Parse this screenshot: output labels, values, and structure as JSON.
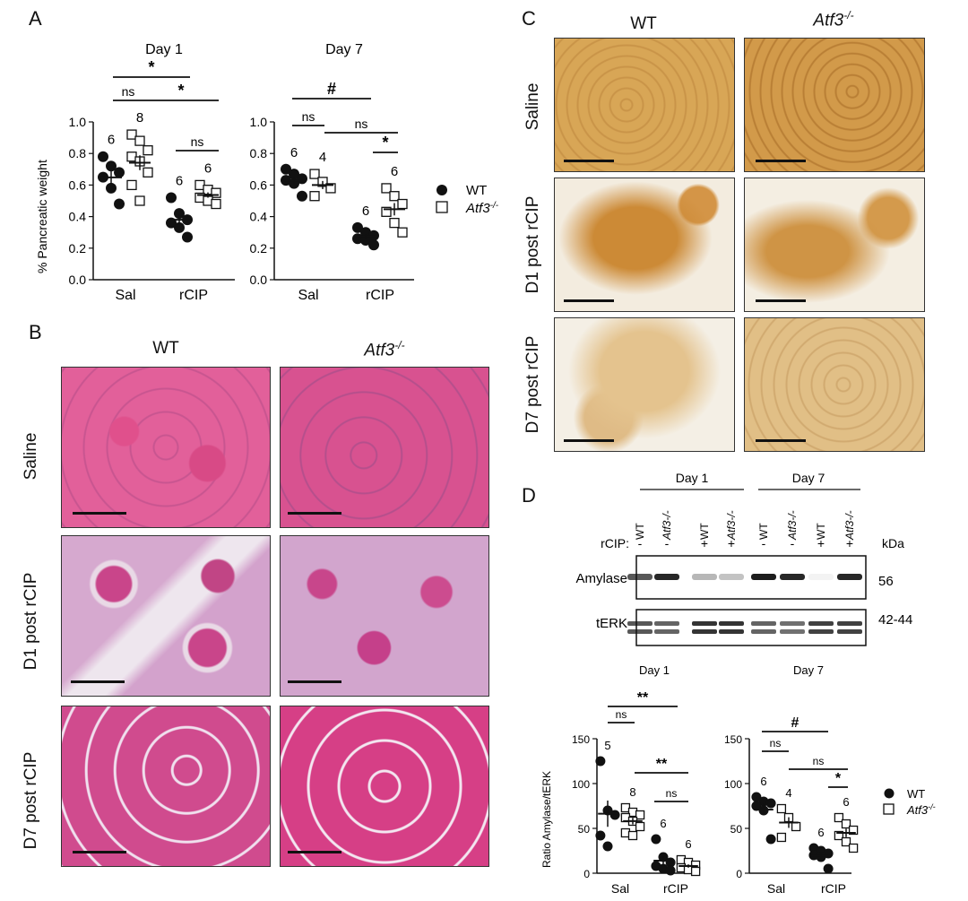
{
  "panels": {
    "a": "A",
    "b": "B",
    "c": "C",
    "d": "D"
  },
  "panelA": {
    "ylabel": "% Pancreatic weight",
    "legend": {
      "wt": "WT",
      "ko": "Atf3",
      "ko_sup": "-/-"
    },
    "charts": [
      {
        "title": "Day 1",
        "categories": [
          "Sal",
          "rCIP"
        ],
        "yticks": [
          "0.0",
          "0.2",
          "0.4",
          "0.6",
          "0.8",
          "1.0"
        ],
        "n": {
          "sal_wt": "6",
          "sal_ko": "8",
          "rcip_wt": "6",
          "rcip_ko": "6"
        },
        "sig": [
          "*",
          "ns",
          "*",
          "ns"
        ]
      },
      {
        "title": "Day 7",
        "categories": [
          "Sal",
          "rCIP"
        ],
        "yticks": [
          "0.0",
          "0.2",
          "0.4",
          "0.6",
          "0.8",
          "1.0"
        ],
        "n": {
          "sal_wt": "6",
          "sal_ko": "4",
          "rcip_wt": "6",
          "rcip_ko": "6"
        },
        "sig": [
          "#",
          "ns",
          "ns",
          "*"
        ]
      }
    ]
  },
  "panelB": {
    "cols": [
      "WT",
      "Atf3"
    ],
    "col_sup": "-/-",
    "rows": [
      "Saline",
      "D1 post rCIP",
      "D7 post rCIP"
    ]
  },
  "panelC": {
    "cols": [
      "WT",
      "Atf3"
    ],
    "col_sup": "-/-",
    "rows": [
      "Saline",
      "D1 post rCIP",
      "D7 post rCIP"
    ]
  },
  "panelD": {
    "blot": {
      "groups": [
        "Day 1",
        "Day 7"
      ],
      "rcip_label": "rCIP:",
      "lanes": [
        {
          "treat": "-",
          "geno": "WT"
        },
        {
          "treat": "-",
          "geno": "Atf3-/-"
        },
        {
          "treat": "+",
          "geno": "WT"
        },
        {
          "treat": "+",
          "geno": "Atf3-/-"
        },
        {
          "treat": "-",
          "geno": "WT"
        },
        {
          "treat": "-",
          "geno": "Atf3-/-"
        },
        {
          "treat": "+",
          "geno": "WT"
        },
        {
          "treat": "+",
          "geno": "Atf3-/-"
        }
      ],
      "kda_label": "kDa",
      "bands": [
        {
          "name": "Amylase",
          "kda": "56"
        },
        {
          "name": "tERK",
          "kda": "42-44"
        }
      ],
      "amylase_intensity": [
        0.7,
        0.9,
        0.3,
        0.25,
        0.95,
        0.9,
        0.05,
        0.9
      ],
      "terk_intensity": [
        0.7,
        0.65,
        0.85,
        0.85,
        0.65,
        0.6,
        0.8,
        0.8
      ]
    },
    "ylabel": "Ratio Amylase/tERK",
    "legend": {
      "wt": "WT",
      "ko": "Atf3",
      "ko_sup": "-/-"
    },
    "charts": [
      {
        "title": "Day 1",
        "categories": [
          "Sal",
          "rCIP"
        ],
        "yticks": [
          "0",
          "50",
          "100",
          "150"
        ],
        "n": {
          "sal_wt": "5",
          "sal_ko": "8",
          "rcip_wt": "6",
          "rcip_ko": "6"
        },
        "sig": [
          "**",
          "ns",
          "**",
          "ns"
        ]
      },
      {
        "title": "Day 7",
        "categories": [
          "Sal",
          "rCIP"
        ],
        "yticks": [
          "0",
          "50",
          "100",
          "150"
        ],
        "n": {
          "sal_wt": "6",
          "sal_ko": "4",
          "rcip_wt": "6",
          "rcip_ko": "6"
        },
        "sig": [
          "#",
          "ns",
          "ns",
          "*"
        ]
      }
    ]
  },
  "chart_data": [
    {
      "type": "scatter",
      "title": "Day 1",
      "ylabel": "% Pancreatic weight",
      "ylim": [
        0,
        1.0
      ],
      "categories": [
        "Sal",
        "rCIP"
      ],
      "series": [
        {
          "name": "WT",
          "values": [
            [
              0.78,
              0.72,
              0.68,
              0.65,
              0.58,
              0.48
            ],
            [
              0.52,
              0.42,
              0.38,
              0.36,
              0.33,
              0.27
            ]
          ]
        },
        {
          "name": "Atf3-/-",
          "values": [
            [
              0.92,
              0.88,
              0.82,
              0.78,
              0.75,
              0.68,
              0.6,
              0.5
            ],
            [
              0.6,
              0.57,
              0.55,
              0.52,
              0.5,
              0.48
            ]
          ]
        }
      ]
    },
    {
      "type": "scatter",
      "title": "Day 7",
      "ylabel": "% Pancreatic weight",
      "ylim": [
        0,
        1.0
      ],
      "categories": [
        "Sal",
        "rCIP"
      ],
      "series": [
        {
          "name": "WT",
          "values": [
            [
              0.7,
              0.67,
              0.64,
              0.63,
              0.61,
              0.53
            ],
            [
              0.33,
              0.3,
              0.28,
              0.26,
              0.25,
              0.22
            ]
          ]
        },
        {
          "name": "Atf3-/-",
          "values": [
            [
              0.67,
              0.62,
              0.58,
              0.53
            ],
            [
              0.58,
              0.53,
              0.48,
              0.43,
              0.36,
              0.3
            ]
          ]
        }
      ]
    },
    {
      "type": "scatter",
      "title": "Day 1",
      "ylabel": "Ratio Amylase/tERK",
      "ylim": [
        0,
        150
      ],
      "categories": [
        "Sal",
        "rCIP"
      ],
      "series": [
        {
          "name": "WT",
          "values": [
            [
              125,
              70,
              65,
              42,
              30
            ],
            [
              38,
              18,
              12,
              8,
              5,
              3
            ]
          ]
        },
        {
          "name": "Atf3-/-",
          "values": [
            [
              73,
              68,
              65,
              62,
              58,
              52,
              45,
              42
            ],
            [
              15,
              12,
              9,
              6,
              4,
              2
            ]
          ]
        }
      ]
    },
    {
      "type": "scatter",
      "title": "Day 7",
      "ylabel": "Ratio Amylase/tERK",
      "ylim": [
        0,
        150
      ],
      "categories": [
        "Sal",
        "rCIP"
      ],
      "series": [
        {
          "name": "WT",
          "values": [
            [
              85,
              80,
              78,
              75,
              70,
              38
            ],
            [
              28,
              25,
              22,
              20,
              18,
              5
            ]
          ]
        },
        {
          "name": "Atf3-/-",
          "values": [
            [
              72,
              62,
              52,
              40
            ],
            [
              62,
              55,
              48,
              42,
              35,
              28
            ]
          ]
        }
      ]
    }
  ]
}
